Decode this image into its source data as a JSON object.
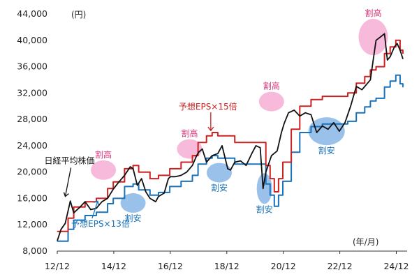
{
  "chart_data": {
    "type": "line",
    "title": "",
    "y_unit_label": "(円)",
    "x_unit_label": "(年/月)",
    "ylim": [
      8000,
      44000
    ],
    "grid": false,
    "yticks": [
      8000,
      12000,
      16000,
      20000,
      24000,
      28000,
      32000,
      36000,
      40000,
      44000
    ],
    "ytick_labels": [
      "8,000",
      "12,000",
      "16,000",
      "20,000",
      "24,000",
      "28,000",
      "32,000",
      "36,000",
      "40,000",
      "44,000"
    ],
    "xticks": [
      2012.917,
      2014.917,
      2016.917,
      2018.917,
      2020.917,
      2022.917,
      2024.917
    ],
    "xtick_labels": [
      "12/12",
      "14/12",
      "16/12",
      "18/12",
      "20/12",
      "22/12",
      "24/12"
    ],
    "xlim": [
      2012.917,
      2025.3
    ],
    "colors": {
      "nikkei": "#111111",
      "eps15": "#cc2222",
      "eps13": "#1a72b8",
      "overvalued": "#d8337a",
      "undervalued": "#1a72b8"
    },
    "series": [
      {
        "name": "日経平均株価",
        "x": [
          2012.92,
          2013.05,
          2013.2,
          2013.38,
          2013.5,
          2013.7,
          2013.9,
          2014.1,
          2014.3,
          2014.5,
          2014.7,
          2014.9,
          2015.1,
          2015.3,
          2015.5,
          2015.6,
          2015.75,
          2015.9,
          2016.05,
          2016.2,
          2016.4,
          2016.5,
          2016.7,
          2016.85,
          2016.92,
          2017.1,
          2017.3,
          2017.5,
          2017.7,
          2017.85,
          2017.92,
          2018.05,
          2018.2,
          2018.4,
          2018.6,
          2018.75,
          2018.95,
          2019.05,
          2019.2,
          2019.4,
          2019.6,
          2019.8,
          2019.95,
          2020.1,
          2020.2,
          2020.3,
          2020.5,
          2020.7,
          2020.85,
          2020.95,
          2021.1,
          2021.3,
          2021.5,
          2021.7,
          2021.9,
          2022.1,
          2022.3,
          2022.5,
          2022.7,
          2022.9,
          2023.1,
          2023.3,
          2023.5,
          2023.7,
          2023.9,
          2024.0,
          2024.1,
          2024.2,
          2024.35,
          2024.5,
          2024.6,
          2024.7,
          2024.85,
          2024.95,
          2025.05,
          2025.15
        ],
        "y": [
          9600,
          11300,
          12200,
          15600,
          13800,
          14600,
          15500,
          14300,
          14500,
          15500,
          16000,
          17400,
          18500,
          19500,
          20800,
          20500,
          18000,
          19000,
          17000,
          16000,
          15500,
          16300,
          16800,
          19000,
          19300,
          19300,
          19500,
          20000,
          21000,
          22500,
          23000,
          23500,
          21500,
          22500,
          22800,
          24000,
          20500,
          20300,
          21500,
          21700,
          21000,
          22800,
          24000,
          23700,
          17500,
          20000,
          22500,
          23200,
          26000,
          27400,
          29000,
          29400,
          28500,
          29000,
          28700,
          26000,
          27000,
          26500,
          27500,
          26200,
          27500,
          30000,
          33000,
          32500,
          33500,
          34000,
          37000,
          40000,
          40500,
          41000,
          37000,
          37500,
          39000,
          39500,
          38500,
          37200
        ]
      },
      {
        "name": "予想EPS×15倍",
        "x": [
          2012.92,
          2013.3,
          2013.5,
          2013.9,
          2014.3,
          2014.7,
          2014.9,
          2015.3,
          2015.6,
          2015.8,
          2016.2,
          2016.5,
          2016.9,
          2017.3,
          2017.7,
          2017.9,
          2018.2,
          2018.4,
          2018.6,
          2018.9,
          2019.2,
          2019.6,
          2019.9,
          2020.3,
          2020.45,
          2020.6,
          2020.75,
          2020.9,
          2021.2,
          2021.5,
          2021.9,
          2022.3,
          2022.7,
          2022.9,
          2023.2,
          2023.5,
          2023.8,
          2024.0,
          2024.2,
          2024.5,
          2024.7,
          2024.9,
          2025.05,
          2025.15
        ],
        "y": [
          11000,
          13000,
          14700,
          15500,
          16000,
          17500,
          18500,
          20500,
          21000,
          20000,
          19000,
          19500,
          20500,
          21500,
          22500,
          24500,
          25500,
          26000,
          25500,
          25500,
          24500,
          24500,
          24500,
          21000,
          19000,
          17000,
          19000,
          21500,
          26500,
          30000,
          31000,
          31500,
          31500,
          31500,
          32000,
          33500,
          34500,
          35500,
          36000,
          38000,
          39000,
          40000,
          38500,
          38000
        ]
      },
      {
        "name": "予想EPS×13倍",
        "x": [
          2012.92,
          2013.3,
          2013.5,
          2013.9,
          2014.3,
          2014.7,
          2014.9,
          2015.3,
          2015.6,
          2015.8,
          2016.2,
          2016.5,
          2016.9,
          2017.3,
          2017.7,
          2017.9,
          2018.2,
          2018.4,
          2018.6,
          2018.9,
          2019.2,
          2019.6,
          2019.9,
          2020.3,
          2020.45,
          2020.6,
          2020.75,
          2020.9,
          2021.2,
          2021.5,
          2021.9,
          2022.3,
          2022.7,
          2022.9,
          2023.2,
          2023.5,
          2023.8,
          2024.0,
          2024.2,
          2024.5,
          2024.7,
          2024.9,
          2025.05,
          2025.15
        ],
        "y": [
          9500,
          11300,
          12700,
          13400,
          13900,
          15200,
          16000,
          17800,
          18200,
          17300,
          16500,
          16900,
          17800,
          18600,
          19500,
          21200,
          22100,
          22500,
          22100,
          22100,
          21200,
          21200,
          21200,
          18200,
          16500,
          14800,
          16500,
          18600,
          23000,
          26000,
          26900,
          27300,
          27300,
          27300,
          27700,
          29000,
          29900,
          30800,
          31200,
          32900,
          33800,
          34700,
          33400,
          32900
        ]
      }
    ],
    "annotations": [
      {
        "kind": "overvalued",
        "text": "割高",
        "x": 2014.55,
        "y": 20300
      },
      {
        "kind": "overvalued",
        "text": "割高",
        "x": 2017.6,
        "y": 23500
      },
      {
        "kind": "overvalued",
        "text": "割高",
        "x": 2020.5,
        "y": 30700
      },
      {
        "kind": "overvalued",
        "text": "割高",
        "x": 2024.1,
        "y": 40500
      },
      {
        "kind": "undervalued",
        "text": "割安",
        "x": 2015.6,
        "y": 15300
      },
      {
        "kind": "undervalued",
        "text": "割安",
        "x": 2018.65,
        "y": 19900
      },
      {
        "kind": "undervalued",
        "text": "割安",
        "x": 2020.25,
        "y": 17500
      },
      {
        "kind": "undervalued",
        "text": "割安",
        "x": 2022.45,
        "y": 26200
      }
    ],
    "series_labels": [
      {
        "text": "予想EPS×15倍",
        "series": 1
      },
      {
        "text": "予想EPS×13倍",
        "series": 2
      },
      {
        "text": "日経平均株価",
        "series": 0
      }
    ]
  }
}
